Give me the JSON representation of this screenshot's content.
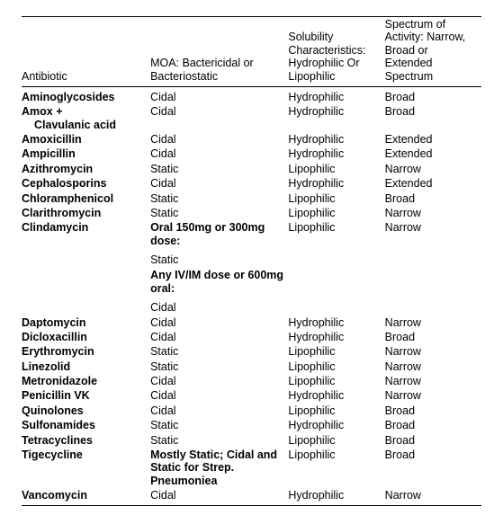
{
  "columns": {
    "antibiotic": "Antibiotic",
    "moa": "MOA: Bactericidal or Bacteriostatic",
    "solubility": "Solubility Characteristics: Hydrophilic Or Lipophilic",
    "spectrum": "Spectrum of Activity: Narrow, Broad or Extended Spectrum"
  },
  "rows": [
    {
      "antibiotic_bold": true,
      "antibiotic": "Aminoglycosides",
      "moa": "Cidal",
      "sol": "Hydrophilic",
      "spec": "Broad"
    },
    {
      "antibiotic_bold": true,
      "antibiotic": "Amox +",
      "moa": "Cidal",
      "sol": "Hydrophilic",
      "spec": "Broad",
      "antibiotic_cont": "Clavulanic acid"
    },
    {
      "antibiotic_bold": true,
      "antibiotic": "Amoxicillin",
      "moa": "Cidal",
      "sol": "Hydrophilic",
      "spec": "Extended"
    },
    {
      "antibiotic_bold": true,
      "antibiotic": "Ampicillin",
      "moa": "Cidal",
      "sol": "Hydrophilic",
      "spec": "Extended"
    },
    {
      "antibiotic_bold": true,
      "antibiotic": "Azithromycin",
      "moa": "Static",
      "sol": "Lipophilic",
      "spec": "Narrow"
    },
    {
      "antibiotic_bold": true,
      "antibiotic": "Cephalosporins",
      "moa": "Cidal",
      "sol": "Hydrophilic",
      "spec": "Extended"
    },
    {
      "antibiotic_bold": true,
      "antibiotic": "Chloramphenicol",
      "moa": "Static",
      "sol": "Lipophilic",
      "spec": "Broad"
    },
    {
      "antibiotic_bold": true,
      "antibiotic": "Clarithromycin",
      "moa": "Static",
      "sol": "Lipophilic",
      "spec": "Narrow"
    },
    {
      "antibiotic_bold": true,
      "antibiotic": "Clindamycin",
      "moa_bold": true,
      "moa": "Oral 150mg or 300mg dose:",
      "sol": "Lipophilic",
      "spec": "Narrow"
    },
    {
      "moa": "Static"
    },
    {
      "moa_bold": true,
      "moa": "Any IV/IM dose or 600mg oral:"
    },
    {
      "moa": "Cidal"
    },
    {
      "antibiotic_bold": true,
      "antibiotic": "Daptomycin",
      "moa": "Cidal",
      "sol": "Hydrophilic",
      "spec": "Narrow"
    },
    {
      "antibiotic_bold": true,
      "antibiotic": "Dicloxacillin",
      "moa": "Cidal",
      "sol": "Hydrophilic",
      "spec": "Broad"
    },
    {
      "antibiotic_bold": true,
      "antibiotic": "Erythromycin",
      "moa": "Static",
      "sol": "Lipophilic",
      "spec": "Narrow"
    },
    {
      "antibiotic_bold": true,
      "antibiotic": "Linezolid",
      "moa": "Static",
      "sol": "Lipophilic",
      "spec": "Narrow"
    },
    {
      "antibiotic_bold": true,
      "antibiotic": "Metronidazole",
      "moa": "Cidal",
      "sol": "Lipophilic",
      "spec": "Narrow"
    },
    {
      "antibiotic_bold": true,
      "antibiotic": "Penicillin VK",
      "moa": "Cidal",
      "sol": "Hydrophilic",
      "spec": "Narrow"
    },
    {
      "antibiotic_bold": true,
      "antibiotic": "Quinolones",
      "moa": "Cidal",
      "sol": "Lipophilic",
      "spec": "Broad"
    },
    {
      "antibiotic_bold": true,
      "antibiotic": "Sulfonamides",
      "moa": "Static",
      "sol": "Hydrophilic",
      "spec": "Broad"
    },
    {
      "antibiotic_bold": true,
      "antibiotic": "Tetracyclines",
      "moa": "Static",
      "sol": "Lipophilic",
      "spec": "Broad"
    },
    {
      "antibiotic_bold": true,
      "antibiotic": "Tigecycline",
      "moa_bold": true,
      "moa": "Mostly Static; Cidal and Static for Strep. Pneumoniea",
      "sol": "Lipophilic",
      "spec": "Broad"
    },
    {
      "antibiotic_bold": true,
      "antibiotic": "Vancomycin",
      "moa": "Cidal",
      "sol": "Hydrophilic",
      "spec": "Narrow"
    }
  ],
  "style": {
    "font_family": "Arial, Helvetica, sans-serif",
    "font_size_pt": 9.5,
    "text_color": "#000000",
    "background_color": "#ffffff",
    "rule_color": "#000000",
    "col_widths_pct": [
      28,
      30,
      21,
      21
    ]
  }
}
